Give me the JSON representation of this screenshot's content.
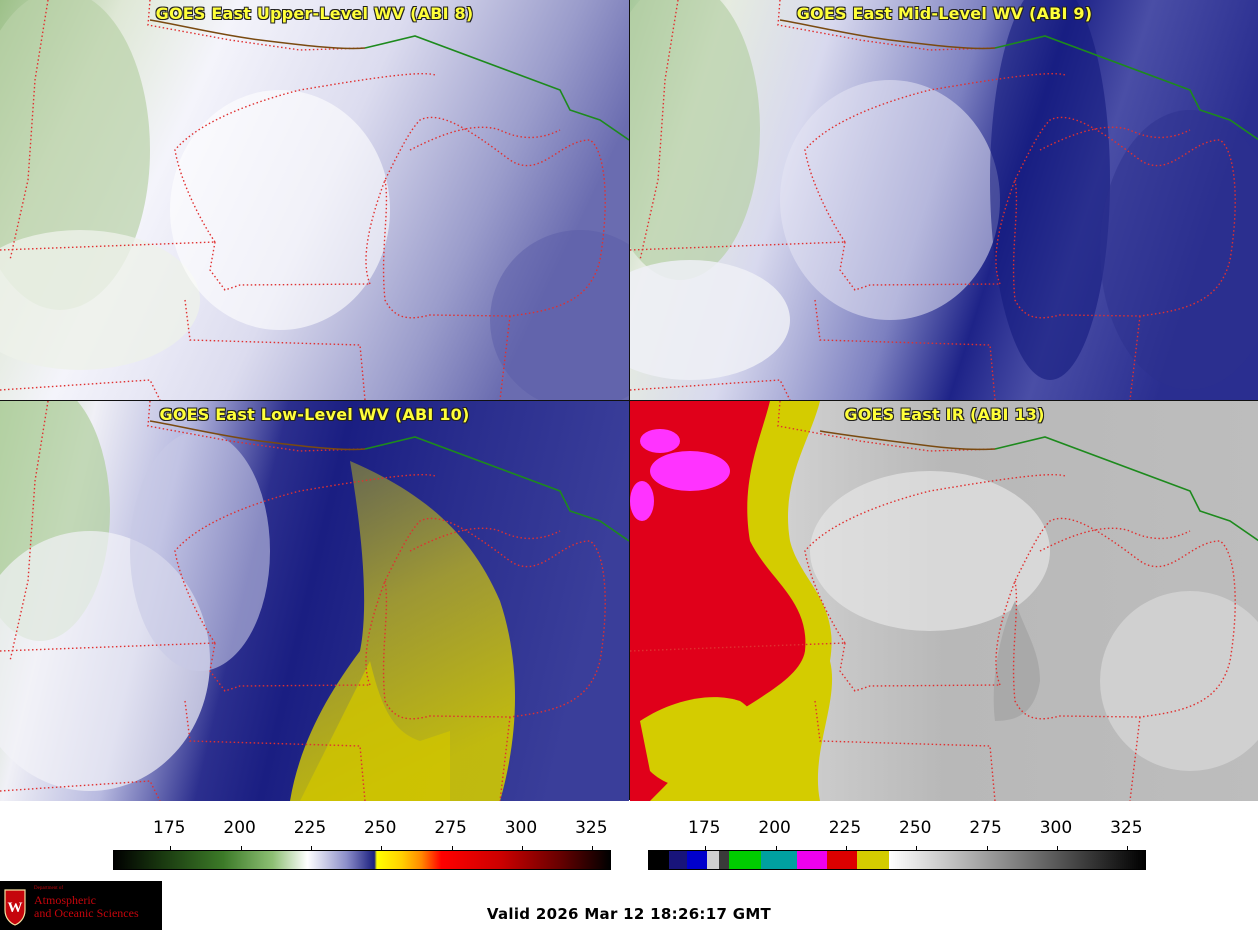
{
  "panels": {
    "upper": {
      "title": "GOES East Upper-Level WV (ABI 8)"
    },
    "mid": {
      "title": "GOES East Mid-Level WV (ABI 9)"
    },
    "low": {
      "title": "GOES East Low-Level WV (ABI 10)"
    },
    "ir": {
      "title": "GOES East IR (ABI 13)"
    }
  },
  "colorbars": {
    "wv": {
      "ticks": [
        "175",
        "200",
        "225",
        "250",
        "275",
        "300",
        "325"
      ],
      "tick_values": [
        175,
        200,
        225,
        250,
        275,
        300,
        325
      ],
      "range": [
        155,
        332
      ],
      "stops": [
        "#000000",
        "#2a6a1a",
        "#5fa43a",
        "#ffffff",
        "#2a2a8a",
        "#ffff00",
        "#ff8800",
        "#dd0000",
        "#550000",
        "#000000"
      ]
    },
    "ir": {
      "ticks": [
        "175",
        "200",
        "225",
        "250",
        "275",
        "300",
        "325"
      ],
      "tick_values": [
        175,
        200,
        225,
        250,
        275,
        300,
        325
      ],
      "range": [
        155,
        332
      ]
    }
  },
  "logo": {
    "small_text": "Department of",
    "line1": "Atmospheric",
    "line2": "and Oceanic Sciences"
  },
  "footer": {
    "valid": "Valid 2026 Mar 12 18:26:17 GMT"
  },
  "colors": {
    "title": "#ffff3a",
    "border": "#e03030",
    "intl_border": "#228b22"
  }
}
